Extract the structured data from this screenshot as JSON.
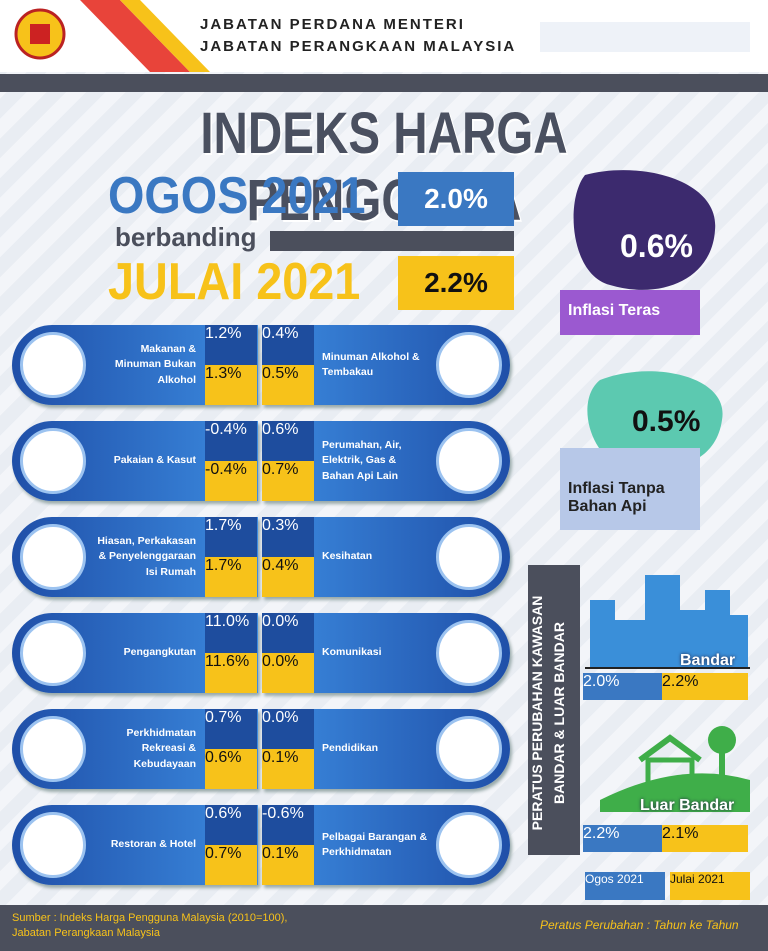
{
  "header": {
    "lines": [
      "JABATAN PERDANA MENTERI",
      "JABATAN PERANGKAAN MALAYSIA"
    ]
  },
  "title": "INDEKS HARGA PENGGUNA",
  "comparison": {
    "current": {
      "label": "OGOS 2021",
      "value": "2.0%"
    },
    "connector": "berbanding",
    "previous": {
      "label": "JULAI 2021",
      "value": "2.2%"
    }
  },
  "core_inflation": {
    "value": "0.6%",
    "label": "Inflasi Teras"
  },
  "non_fuel_inflation": {
    "value": "0.5%",
    "label": "Inflasi Tanpa Bahan Api"
  },
  "groups": [
    {
      "left": {
        "name": "Makanan & Minuman Bukan Alkohol",
        "current": "1.2%",
        "previous": "1.3%"
      },
      "right": {
        "name": "Minuman Alkohol & Tembakau",
        "current": "0.4%",
        "previous": "0.5%"
      }
    },
    {
      "left": {
        "name": "Pakaian & Kasut",
        "current": "-0.4%",
        "previous": "-0.4%"
      },
      "right": {
        "name": "Perumahan, Air, Elektrik, Gas & Bahan Api Lain",
        "current": "0.6%",
        "previous": "0.7%"
      }
    },
    {
      "left": {
        "name": "Hiasan, Perkakasan & Penyelenggaraan Isi Rumah",
        "current": "1.7%",
        "previous": "1.7%"
      },
      "right": {
        "name": "Kesihatan",
        "current": "0.3%",
        "previous": "0.4%"
      }
    },
    {
      "left": {
        "name": "Pengangkutan",
        "current": "11.0%",
        "previous": "11.6%"
      },
      "right": {
        "name": "Komunikasi",
        "current": "0.0%",
        "previous": "0.0%"
      }
    },
    {
      "left": {
        "name": "Perkhidmatan Rekreasi & Kebudayaan",
        "current": "0.7%",
        "previous": "0.6%"
      },
      "right": {
        "name": "Pendidikan",
        "current": "0.0%",
        "previous": "0.1%"
      }
    },
    {
      "left": {
        "name": "Restoran & Hotel",
        "current": "0.6%",
        "previous": "0.7%"
      },
      "right": {
        "name": "Pelbagai Barangan & Perkhidmatan",
        "current": "-0.6%",
        "previous": "0.1%"
      }
    }
  ],
  "urban_rural": {
    "title_lines": [
      "PERATUS PERUBAHAN KAWASAN",
      "BANDAR & LUAR BANDAR"
    ],
    "areas": [
      {
        "name": "Bandar",
        "current": "2.0%",
        "previous": "2.2%"
      },
      {
        "name": "Luar Bandar",
        "current": "2.2%",
        "previous": "2.1%"
      }
    ],
    "legend": [
      "Ogos 2021",
      "Julai 2021"
    ]
  },
  "footer": {
    "source_lines": [
      "Sumber : Indeks Harga Pengguna Malaysia (2010=100),",
      "Jabatan Perangkaan Malaysia"
    ],
    "note": "Peratus Perubahan : Tahun ke Tahun"
  }
}
